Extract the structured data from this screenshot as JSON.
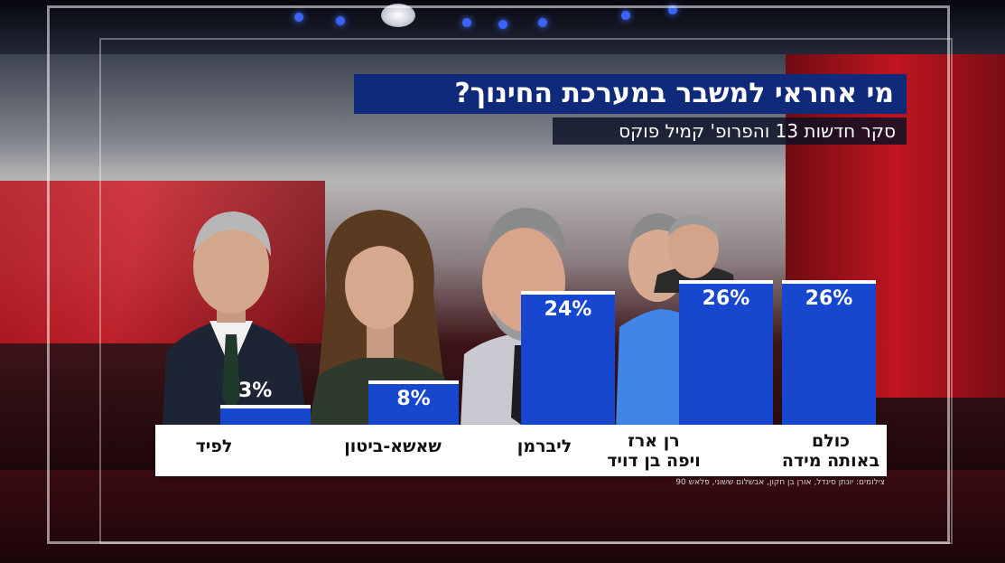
{
  "title": "מי אחראי למשבר במערכת החינוך?",
  "subtitle": "סקר חדשות 13 והפרופ' קמיל פוקס",
  "photo_credit": "צילומים: יונתן סינדל, אורן בן חקון, אבשלום ששוני, פלאש 90",
  "colors": {
    "bar": "#1747cf",
    "title_bg": "#0f2a7a",
    "label_bg": "#ffffff"
  },
  "chart_data": {
    "type": "bar",
    "title": "מי אחראי למשבר במערכת החינוך?",
    "subtitle": "סקר חדשות 13 והפרופ' קמיל פוקס",
    "categories": [
      "לפיד",
      "שאשא-ביטון",
      "ליברמן",
      "רן ארז\nויפה בן דויד",
      "כולם\nבאותה מידה"
    ],
    "values": [
      3,
      8,
      24,
      26,
      26
    ],
    "value_labels": [
      "3%",
      "8%",
      "24%",
      "26%",
      "26%"
    ],
    "unit": "%",
    "ylim": [
      0,
      26
    ],
    "grid": false,
    "legend": "none"
  }
}
